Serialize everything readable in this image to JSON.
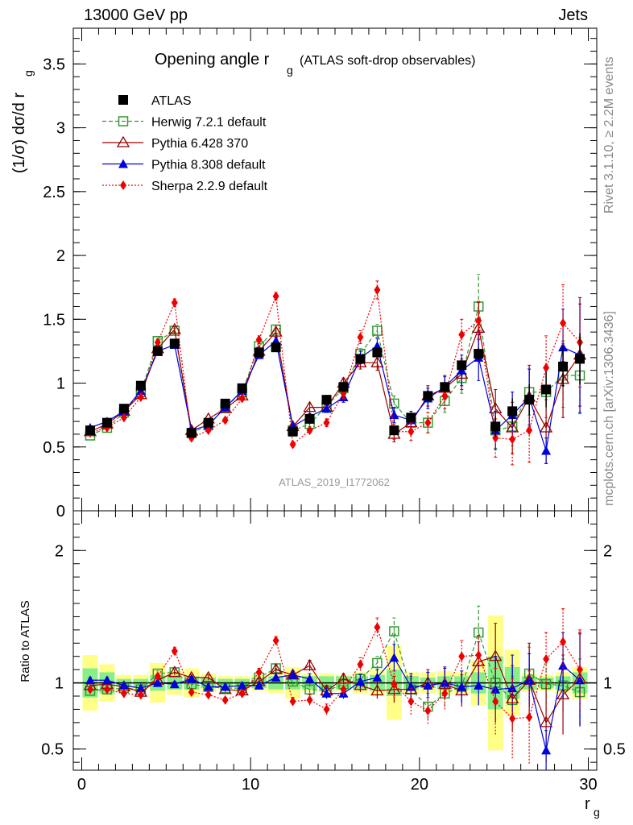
{
  "header": {
    "left": "13000 GeV pp",
    "right": "Jets"
  },
  "side_labels": {
    "top": "Rivet 3.1.10, ≥ 2.2M events",
    "bottom": "mcplots.cern.ch [arXiv:1306.3436]"
  },
  "plot_title": {
    "main": "Opening angle r",
    "sub": "g",
    "paren": "(ATLAS soft-drop observables)"
  },
  "watermark": "ATLAS_2019_I1772062",
  "ratio_ylabel": "Ratio to ATLAS",
  "colors": {
    "data": "#000000",
    "herwig": "#339933",
    "pythia6": "#990000",
    "pythia8": "#0000dd",
    "sherpa": "#ee0000",
    "band_inner": "#88ee88",
    "band_outer": "#ffff88"
  },
  "chart_data": [
    {
      "type": "scatter",
      "title": "Opening angle r_g (ATLAS soft-drop observables)",
      "xlabel": "r_g",
      "ylabel": "(1/σ) dσ/d r_g",
      "xlim": [
        -0.5,
        30.5
      ],
      "ylim": [
        0,
        3.78
      ],
      "x_ticks": [
        "0",
        "10",
        "20",
        "30"
      ],
      "y_ticks": [
        "0.5",
        "1",
        "1.5",
        "2",
        "2.5",
        "3",
        "3.5"
      ],
      "y_tick_bottom": "0",
      "legend_position": "top-left",
      "x": [
        0.5,
        1.5,
        2.5,
        3.5,
        4.5,
        5.5,
        6.5,
        7.5,
        8.5,
        9.5,
        10.5,
        11.5,
        12.5,
        13.5,
        14.5,
        15.5,
        16.5,
        17.5,
        18.5,
        19.5,
        20.5,
        21.5,
        22.5,
        23.5,
        24.5,
        25.5,
        26.5,
        27.5,
        28.5,
        29.5
      ],
      "series": [
        {
          "name": "ATLAS",
          "style": "data",
          "values": [
            0.63,
            0.69,
            0.8,
            0.98,
            1.25,
            1.31,
            0.61,
            0.69,
            0.84,
            0.96,
            1.24,
            1.28,
            0.62,
            0.72,
            0.87,
            0.97,
            1.19,
            1.24,
            0.63,
            0.73,
            0.9,
            0.97,
            1.14,
            1.23,
            0.66,
            0.78,
            0.87,
            0.95,
            1.13,
            1.19
          ],
          "errors": [
            0.01,
            0.01,
            0.01,
            0.01,
            0.01,
            0.01,
            0.01,
            0.01,
            0.01,
            0.01,
            0.01,
            0.01,
            0.01,
            0.01,
            0.02,
            0.02,
            0.03,
            0.03,
            0.03,
            0.03,
            0.04,
            0.04,
            0.05,
            0.05,
            0.08,
            0.1,
            0.12,
            0.14,
            0.16,
            0.2
          ]
        },
        {
          "name": "Herwig 7.2.1 default",
          "style": "herwig",
          "values": [
            0.59,
            0.65,
            0.77,
            0.93,
            1.33,
            1.41,
            0.61,
            0.67,
            0.81,
            0.93,
            1.29,
            1.42,
            0.63,
            0.68,
            0.82,
            0.96,
            1.23,
            1.41,
            0.84,
            0.69,
            0.69,
            0.86,
            1.04,
            1.6,
            0.63,
            0.66,
            0.93,
            0.93,
            1.06,
            1.06
          ],
          "errors": [
            0.01,
            0.01,
            0.01,
            0.01,
            0.02,
            0.02,
            0.01,
            0.01,
            0.02,
            0.02,
            0.02,
            0.03,
            0.02,
            0.02,
            0.03,
            0.03,
            0.04,
            0.05,
            0.06,
            0.06,
            0.08,
            0.09,
            0.12,
            0.25,
            0.14,
            0.15,
            0.18,
            0.2,
            0.25,
            0.3
          ]
        },
        {
          "name": "Pythia 6.428 370",
          "style": "pythia6",
          "values": [
            0.62,
            0.68,
            0.78,
            0.91,
            1.27,
            1.42,
            0.63,
            0.72,
            0.8,
            0.9,
            1.25,
            1.4,
            0.66,
            0.81,
            0.81,
            1.0,
            1.16,
            1.16,
            0.6,
            0.69,
            0.9,
            0.96,
            1.07,
            1.43,
            0.8,
            0.65,
            0.89,
            0.65,
            1.03,
            1.22
          ],
          "errors": [
            0.01,
            0.01,
            0.01,
            0.01,
            0.02,
            0.02,
            0.01,
            0.01,
            0.02,
            0.02,
            0.02,
            0.03,
            0.02,
            0.03,
            0.03,
            0.04,
            0.05,
            0.06,
            0.06,
            0.07,
            0.08,
            0.09,
            0.12,
            0.2,
            0.15,
            0.2,
            0.25,
            0.28,
            0.3,
            0.4
          ]
        },
        {
          "name": "Pythia 8.308 default",
          "style": "pythia8",
          "values": [
            0.65,
            0.7,
            0.78,
            0.94,
            1.25,
            1.3,
            0.63,
            0.67,
            0.81,
            0.94,
            1.22,
            1.33,
            0.66,
            0.74,
            0.8,
            0.89,
            1.2,
            1.29,
            0.75,
            0.71,
            0.88,
            0.97,
            1.1,
            1.2,
            0.63,
            0.75,
            0.89,
            0.47,
            1.28,
            1.22
          ],
          "errors": [
            0.01,
            0.01,
            0.01,
            0.01,
            0.02,
            0.02,
            0.01,
            0.01,
            0.02,
            0.02,
            0.02,
            0.03,
            0.02,
            0.02,
            0.03,
            0.04,
            0.05,
            0.06,
            0.06,
            0.07,
            0.08,
            0.09,
            0.12,
            0.18,
            0.15,
            0.18,
            0.22,
            0.1,
            0.3,
            0.45
          ]
        },
        {
          "name": "Sherpa 2.2.9 default",
          "style": "sherpa",
          "values": [
            0.61,
            0.65,
            0.73,
            0.89,
            1.32,
            1.63,
            0.57,
            0.63,
            0.71,
            0.88,
            1.34,
            1.68,
            0.52,
            0.63,
            0.69,
            0.92,
            1.36,
            1.73,
            0.62,
            0.62,
            0.69,
            0.9,
            1.38,
            1.49,
            0.57,
            0.56,
            0.63,
            1.12,
            1.47,
            1.32
          ],
          "errors": [
            0.01,
            0.01,
            0.01,
            0.01,
            0.02,
            0.03,
            0.01,
            0.01,
            0.02,
            0.02,
            0.03,
            0.03,
            0.02,
            0.02,
            0.03,
            0.04,
            0.05,
            0.07,
            0.06,
            0.07,
            0.08,
            0.1,
            0.12,
            0.15,
            0.15,
            0.2,
            0.25,
            0.25,
            0.3,
            0.35
          ]
        }
      ]
    },
    {
      "type": "scatter",
      "ylabel": "Ratio to ATLAS",
      "xlabel": "r_g",
      "xlim": [
        -0.5,
        30.5
      ],
      "ylim": [
        0.34,
        2.3
      ],
      "y_ticks": [
        "0.5",
        "1",
        "2"
      ],
      "reference_line": 1,
      "x": [
        0.5,
        1.5,
        2.5,
        3.5,
        4.5,
        5.5,
        6.5,
        7.5,
        8.5,
        9.5,
        10.5,
        11.5,
        12.5,
        13.5,
        14.5,
        15.5,
        16.5,
        17.5,
        18.5,
        19.5,
        20.5,
        21.5,
        22.5,
        23.5,
        24.5,
        25.5,
        26.5,
        27.5,
        28.5,
        29.5
      ],
      "band_inner": [
        0.11,
        0.08,
        0.03,
        0.03,
        0.06,
        0.05,
        0.05,
        0.04,
        0.03,
        0.03,
        0.04,
        0.05,
        0.05,
        0.05,
        0.05,
        0.05,
        0.05,
        0.06,
        0.1,
        0.05,
        0.04,
        0.05,
        0.05,
        0.08,
        0.2,
        0.12,
        0.05,
        0.04,
        0.05,
        0.08
      ],
      "band_outer": [
        0.21,
        0.14,
        0.06,
        0.06,
        0.15,
        0.09,
        0.11,
        0.07,
        0.05,
        0.05,
        0.06,
        0.08,
        0.12,
        0.07,
        0.07,
        0.06,
        0.08,
        0.1,
        0.28,
        0.08,
        0.08,
        0.09,
        0.08,
        0.17,
        0.51,
        0.25,
        0.07,
        0.06,
        0.08,
        0.12
      ],
      "series": [
        {
          "name": "Herwig 7.2.1 default",
          "style": "herwig",
          "values": [
            0.94,
            0.95,
            0.96,
            0.95,
            1.07,
            1.08,
            0.99,
            0.97,
            0.96,
            0.96,
            1.04,
            1.11,
            1.01,
            0.95,
            0.94,
            0.99,
            1.03,
            1.15,
            1.39,
            0.95,
            0.82,
            0.92,
            0.97,
            1.38,
            1.0,
            0.87,
            1.07,
            0.99,
            0.98,
            0.93
          ],
          "errors": [
            0.02,
            0.02,
            0.02,
            0.02,
            0.02,
            0.02,
            0.02,
            0.02,
            0.02,
            0.02,
            0.02,
            0.03,
            0.03,
            0.03,
            0.04,
            0.04,
            0.04,
            0.05,
            0.1,
            0.08,
            0.1,
            0.1,
            0.12,
            0.2,
            0.2,
            0.18,
            0.2,
            0.2,
            0.2,
            0.25
          ]
        },
        {
          "name": "Pythia 6.428 370",
          "style": "pythia6",
          "values": [
            0.98,
            0.99,
            0.97,
            0.93,
            1.02,
            1.08,
            1.04,
            1.04,
            0.95,
            0.94,
            1.01,
            1.1,
            1.06,
            1.13,
            0.94,
            1.03,
            0.98,
            0.94,
            0.95,
            0.95,
            1.0,
            0.99,
            0.94,
            1.16,
            1.2,
            0.88,
            1.02,
            0.7,
            0.91,
            1.03
          ],
          "errors": [
            0.02,
            0.02,
            0.02,
            0.02,
            0.02,
            0.02,
            0.02,
            0.02,
            0.02,
            0.02,
            0.02,
            0.03,
            0.03,
            0.04,
            0.04,
            0.04,
            0.05,
            0.06,
            0.1,
            0.1,
            0.1,
            0.12,
            0.12,
            0.15,
            0.25,
            0.25,
            0.28,
            0.3,
            0.3,
            0.35
          ]
        },
        {
          "name": "Pythia 8.308 default",
          "style": "pythia8",
          "values": [
            1.02,
            1.02,
            0.98,
            0.96,
            1.0,
            0.99,
            1.03,
            0.97,
            0.97,
            0.98,
            0.98,
            1.04,
            1.06,
            1.03,
            0.92,
            0.92,
            1.01,
            1.04,
            1.19,
            0.97,
            0.98,
            1.0,
            0.97,
            0.98,
            0.95,
            0.96,
            1.02,
            0.49,
            1.13,
            1.02
          ],
          "errors": [
            0.02,
            0.02,
            0.02,
            0.02,
            0.02,
            0.02,
            0.02,
            0.02,
            0.02,
            0.02,
            0.02,
            0.03,
            0.03,
            0.04,
            0.04,
            0.04,
            0.05,
            0.06,
            0.1,
            0.1,
            0.1,
            0.12,
            0.12,
            0.15,
            0.25,
            0.25,
            0.2,
            0.15,
            0.25,
            0.35
          ]
        },
        {
          "name": "Sherpa 2.2.9 default",
          "style": "sherpa",
          "values": [
            0.95,
            0.95,
            0.92,
            0.91,
            1.05,
            1.24,
            0.93,
            0.91,
            0.87,
            0.92,
            1.08,
            1.32,
            0.86,
            0.87,
            0.8,
            0.95,
            1.14,
            1.42,
            0.99,
            0.86,
            0.79,
            0.92,
            1.2,
            1.21,
            0.86,
            0.73,
            0.74,
            1.18,
            1.31,
            1.1
          ],
          "errors": [
            0.02,
            0.02,
            0.02,
            0.02,
            0.02,
            0.03,
            0.02,
            0.02,
            0.02,
            0.02,
            0.03,
            0.03,
            0.03,
            0.04,
            0.04,
            0.05,
            0.05,
            0.07,
            0.1,
            0.1,
            0.1,
            0.12,
            0.12,
            0.15,
            0.25,
            0.3,
            0.35,
            0.2,
            0.25,
            0.3
          ]
        }
      ]
    }
  ]
}
